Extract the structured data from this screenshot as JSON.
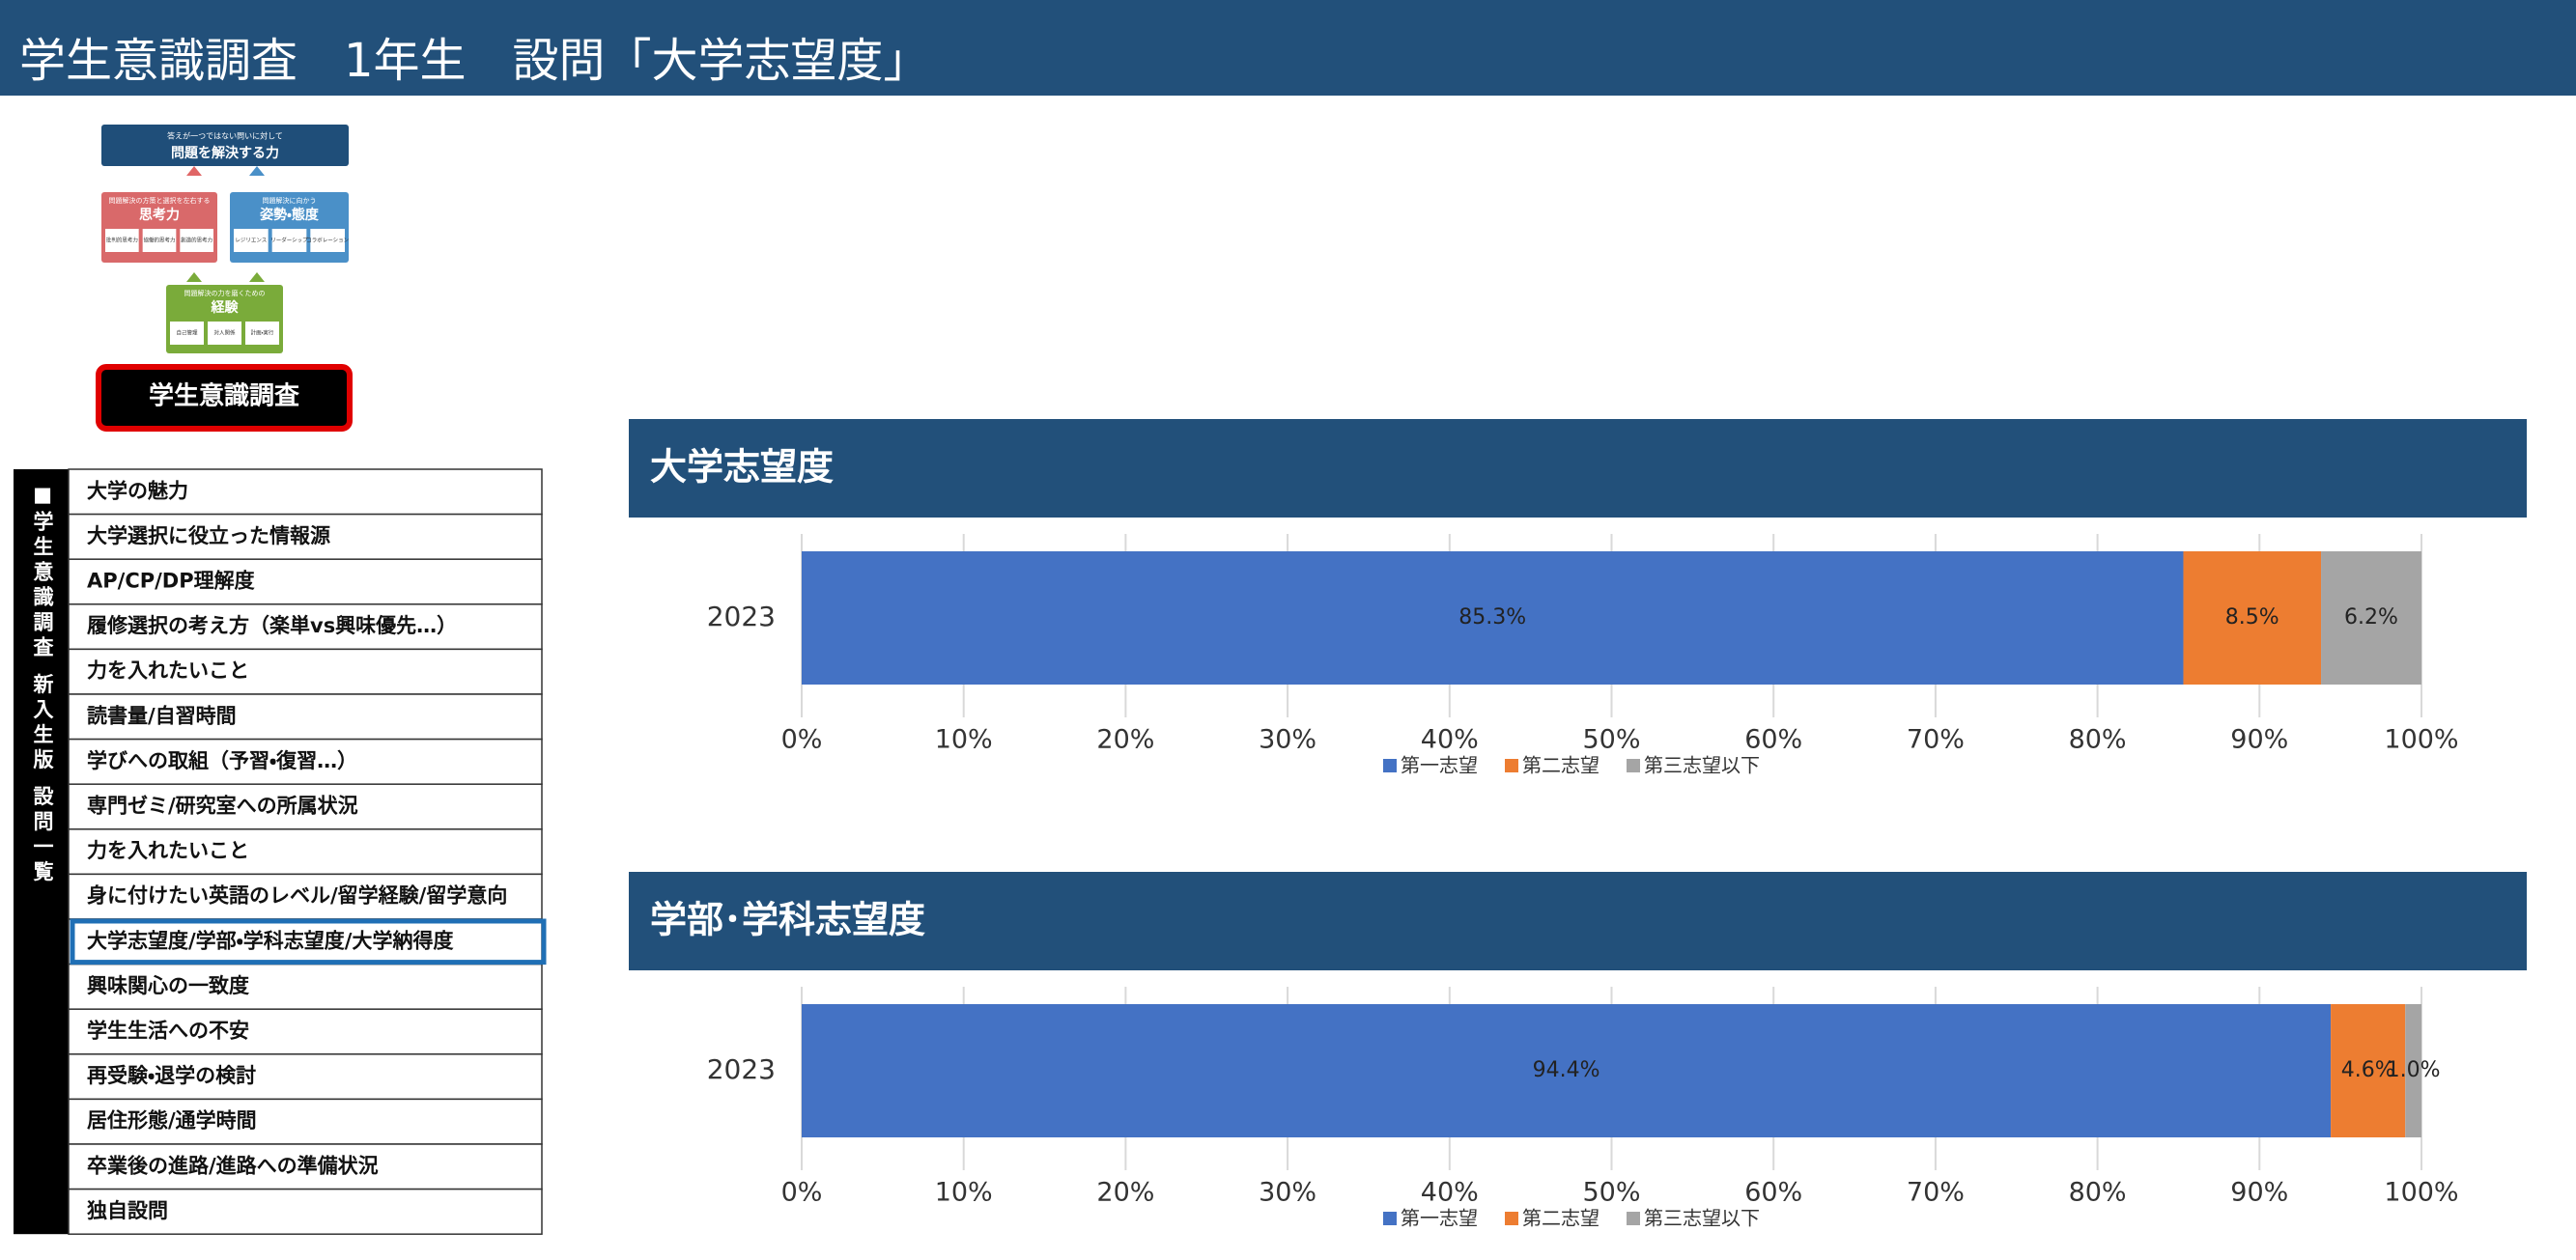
{
  "header": {
    "title": "学生意識調査　1年生　設問「大学志望度」"
  },
  "diagram": {
    "top": {
      "caption": "答えが一つではない問いに対して",
      "title": "問題を解決する力"
    },
    "left": {
      "caption": "問題解決の方策と選択を左右する",
      "title": "思考力",
      "items": [
        "批判的思考力",
        "協働的思考力",
        "創造的思考力"
      ]
    },
    "right": {
      "caption": "問題解決に向かう",
      "title": "姿勢・態度",
      "items": [
        "レジリエンス",
        "リーダーシップ",
        "コラボレーション"
      ]
    },
    "bottom": {
      "caption": "問題解決の力を磨くための",
      "title": "経験",
      "items": [
        "自己管理",
        "対人関係",
        "計画・実行"
      ]
    },
    "button": "学生意識調査"
  },
  "menu": {
    "side_label": "■学生意識調査 新入生版 設問一覧",
    "selected": 10,
    "items": [
      "大学の魅力",
      "大学選択に役立った情報源",
      "AP/CP/DP理解度",
      "履修選択の考え方（楽単vs興味優先…）",
      "力を入れたいこと",
      "読書量/自習時間",
      "学びへの取組（予習・復習…）",
      "専門ゼミ/研究室への所属状況",
      "力を入れたいこと",
      "身に付けたい英語のレベル/留学経験/留学意向",
      "大学志望度/学部・学科志望度/大学納得度",
      "興味関心の一致度",
      "学生生活への不安",
      "再受験・退学の検討",
      "居住形態/通学時間",
      "卒業後の進路/進路への準備状況",
      "独自設問"
    ]
  },
  "chart_data": [
    {
      "type": "stacked-bar",
      "title": "大学志望度",
      "categories": [
        "2023"
      ],
      "series": [
        {
          "name": "第一志望",
          "color": "#4472c4",
          "values": [
            85.3
          ],
          "value_labels": [
            "85.3%"
          ]
        },
        {
          "name": "第二志望",
          "color": "#ed7d31",
          "values": [
            8.5
          ],
          "value_labels": [
            "8.5%"
          ]
        },
        {
          "name": "第三志望以下",
          "color": "#a5a5a5",
          "values": [
            6.2
          ],
          "value_labels": [
            "6.2%"
          ]
        }
      ],
      "xlim": [
        0,
        100
      ],
      "xticks": [
        {
          "value": 0,
          "label": "0%"
        },
        {
          "value": 10,
          "label": "10%"
        },
        {
          "value": 20,
          "label": "20%"
        },
        {
          "value": 30,
          "label": "30%"
        },
        {
          "value": 40,
          "label": "40%"
        },
        {
          "value": 50,
          "label": "50%"
        },
        {
          "value": 60,
          "label": "60%"
        },
        {
          "value": 70,
          "label": "70%"
        },
        {
          "value": 80,
          "label": "80%"
        },
        {
          "value": 90,
          "label": "90%"
        },
        {
          "value": 100,
          "label": "100%"
        }
      ],
      "grid": true,
      "legend": "bottom"
    },
    {
      "type": "stacked-bar",
      "title": "学部･学科志望度",
      "categories": [
        "2023"
      ],
      "series": [
        {
          "name": "第一志望",
          "color": "#4472c4",
          "values": [
            94.4
          ],
          "value_labels": [
            "94.4%"
          ]
        },
        {
          "name": "第二志望",
          "color": "#ed7d31",
          "values": [
            4.6
          ],
          "value_labels": [
            "4.6%"
          ]
        },
        {
          "name": "第三志望以下",
          "color": "#a5a5a5",
          "values": [
            1.0
          ],
          "value_labels": [
            "1.0%"
          ]
        }
      ],
      "xlim": [
        0,
        100
      ],
      "xticks": [
        {
          "value": 0,
          "label": "0%"
        },
        {
          "value": 10,
          "label": "10%"
        },
        {
          "value": 20,
          "label": "20%"
        },
        {
          "value": 30,
          "label": "30%"
        },
        {
          "value": 40,
          "label": "40%"
        },
        {
          "value": 50,
          "label": "50%"
        },
        {
          "value": 60,
          "label": "60%"
        },
        {
          "value": 70,
          "label": "70%"
        },
        {
          "value": 80,
          "label": "80%"
        },
        {
          "value": 90,
          "label": "90%"
        },
        {
          "value": 100,
          "label": "100%"
        }
      ],
      "grid": true,
      "legend": "bottom"
    }
  ]
}
